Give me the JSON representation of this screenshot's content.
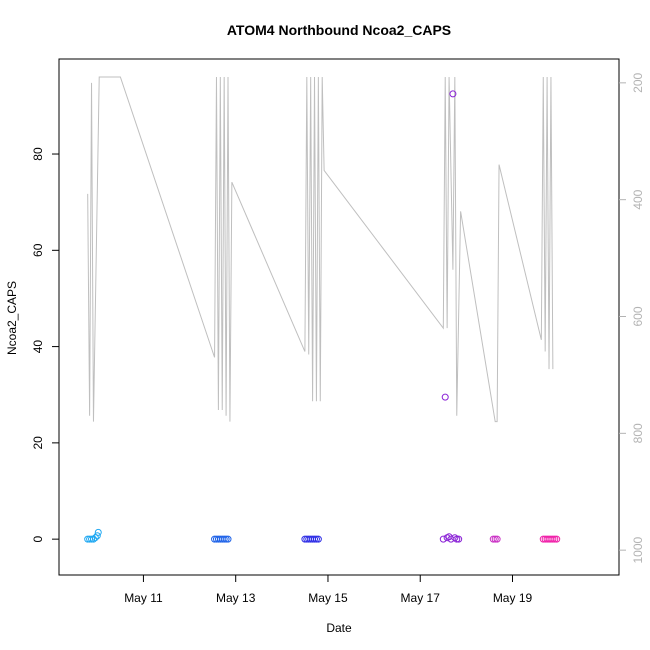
{
  "chart_data": {
    "type": "scatter",
    "title": "ATOM4 Northbound Ncoa2_CAPS",
    "xlabel": "Date",
    "ylabel": "Ncoa2_CAPS",
    "xlim": [
      "2023-05-09T15:00",
      "2023-05-20T21:00"
    ],
    "ylim": [
      -3.5,
      96
    ],
    "x_ticks": [
      {
        "date": "2023-05-11",
        "label": "May 11"
      },
      {
        "date": "2023-05-13",
        "label": "May 13"
      },
      {
        "date": "2023-05-15",
        "label": "May 15"
      },
      {
        "date": "2023-05-17",
        "label": "May 17"
      },
      {
        "date": "2023-05-19",
        "label": "May 19"
      }
    ],
    "y_ticks": [
      0,
      20,
      40,
      60,
      80
    ],
    "y2_ticks": [
      200,
      400,
      600,
      800,
      1000
    ],
    "y2lim": [
      1010,
      190
    ],
    "y2_inverted": true,
    "grid": false,
    "series": [
      {
        "type": "points",
        "groups": [
          {
            "color": "#1fa8f2",
            "points": [
              [
                "2023-05-09T19:00",
                0
              ],
              [
                "2023-05-09T20:00",
                0
              ],
              [
                "2023-05-09T21:00",
                0
              ],
              [
                "2023-05-09T22:00",
                0
              ],
              [
                "2023-05-09T23:00",
                0.3
              ],
              [
                "2023-05-10T00:00",
                0.7
              ],
              [
                "2023-05-10T00:30",
                1.4
              ]
            ]
          },
          {
            "color": "#1e62e8",
            "points": [
              [
                "2023-05-12T13:00",
                0
              ],
              [
                "2023-05-12T14:00",
                0
              ],
              [
                "2023-05-12T15:00",
                0
              ],
              [
                "2023-05-12T16:00",
                0
              ],
              [
                "2023-05-12T17:00",
                0
              ],
              [
                "2023-05-12T18:00",
                0
              ],
              [
                "2023-05-12T19:00",
                0
              ],
              [
                "2023-05-12T20:00",
                0
              ]
            ]
          },
          {
            "color": "#2f2ee6",
            "points": [
              [
                "2023-05-14T12:00",
                0
              ],
              [
                "2023-05-14T13:00",
                0
              ],
              [
                "2023-05-14T14:00",
                0
              ],
              [
                "2023-05-14T15:00",
                0
              ],
              [
                "2023-05-14T16:00",
                0
              ],
              [
                "2023-05-14T17:00",
                0
              ],
              [
                "2023-05-14T18:00",
                0
              ],
              [
                "2023-05-14T19:00",
                0
              ]
            ]
          },
          {
            "color": "#8a22d6",
            "points": [
              [
                "2023-05-17T12:00",
                0
              ],
              [
                "2023-05-17T13:00",
                29.5
              ],
              [
                "2023-05-17T14:00",
                0.3
              ],
              [
                "2023-05-17T15:00",
                0.5
              ],
              [
                "2023-05-17T16:00",
                0
              ],
              [
                "2023-05-17T17:00",
                92.5
              ],
              [
                "2023-05-17T18:00",
                0.3
              ],
              [
                "2023-05-17T19:00",
                0
              ],
              [
                "2023-05-17T20:00",
                0
              ]
            ]
          },
          {
            "color": "#c92ec4",
            "points": [
              [
                "2023-05-18T14:00",
                0
              ],
              [
                "2023-05-18T15:00",
                0
              ],
              [
                "2023-05-18T16:00",
                0
              ]
            ]
          },
          {
            "color": "#f01ea8",
            "points": [
              [
                "2023-05-19T16:00",
                0
              ],
              [
                "2023-05-19T17:00",
                0
              ],
              [
                "2023-05-19T18:00",
                0
              ],
              [
                "2023-05-19T19:00",
                0
              ],
              [
                "2023-05-19T20:00",
                0
              ],
              [
                "2023-05-19T21:00",
                0
              ],
              [
                "2023-05-19T22:00",
                0
              ],
              [
                "2023-05-19T23:00",
                0
              ]
            ]
          }
        ]
      },
      {
        "type": "line",
        "axis": "right",
        "color": "#bfbfbf",
        "points": [
          [
            "2023-05-09T19:00",
            390
          ],
          [
            "2023-05-09T20:00",
            770
          ],
          [
            "2023-05-09T21:00",
            200
          ],
          [
            "2023-05-09T22:00",
            780
          ],
          [
            "2023-05-10T01:00",
            190
          ],
          [
            "2023-05-10T12:00",
            190
          ],
          [
            "2023-05-12T13:00",
            670
          ],
          [
            "2023-05-12T14:00",
            190
          ],
          [
            "2023-05-12T15:00",
            760
          ],
          [
            "2023-05-12T16:00",
            190
          ],
          [
            "2023-05-12T17:00",
            760
          ],
          [
            "2023-05-12T18:00",
            190
          ],
          [
            "2023-05-12T19:00",
            770
          ],
          [
            "2023-05-12T20:00",
            190
          ],
          [
            "2023-05-12T21:00",
            780
          ],
          [
            "2023-05-12T22:00",
            370
          ],
          [
            "2023-05-14T12:00",
            660
          ],
          [
            "2023-05-14T13:00",
            190
          ],
          [
            "2023-05-14T14:00",
            665
          ],
          [
            "2023-05-14T15:00",
            190
          ],
          [
            "2023-05-14T16:00",
            745
          ],
          [
            "2023-05-14T17:00",
            190
          ],
          [
            "2023-05-14T18:00",
            745
          ],
          [
            "2023-05-14T19:00",
            190
          ],
          [
            "2023-05-14T20:00",
            745
          ],
          [
            "2023-05-14T21:00",
            190
          ],
          [
            "2023-05-14T22:00",
            350
          ],
          [
            "2023-05-17T12:00",
            620
          ],
          [
            "2023-05-17T13:00",
            190
          ],
          [
            "2023-05-17T14:00",
            620
          ],
          [
            "2023-05-17T15:00",
            190
          ],
          [
            "2023-05-17T17:00",
            520
          ],
          [
            "2023-05-17T18:00",
            190
          ],
          [
            "2023-05-17T19:00",
            770
          ],
          [
            "2023-05-17T21:00",
            420
          ],
          [
            "2023-05-18T15:00",
            780
          ],
          [
            "2023-05-18T16:00",
            780
          ],
          [
            "2023-05-18T17:00",
            340
          ],
          [
            "2023-05-19T15:00",
            640
          ],
          [
            "2023-05-19T16:00",
            190
          ],
          [
            "2023-05-19T17:00",
            660
          ],
          [
            "2023-05-19T18:00",
            190
          ],
          [
            "2023-05-19T19:00",
            690
          ],
          [
            "2023-05-19T20:00",
            190
          ],
          [
            "2023-05-19T21:00",
            690
          ]
        ]
      }
    ]
  }
}
